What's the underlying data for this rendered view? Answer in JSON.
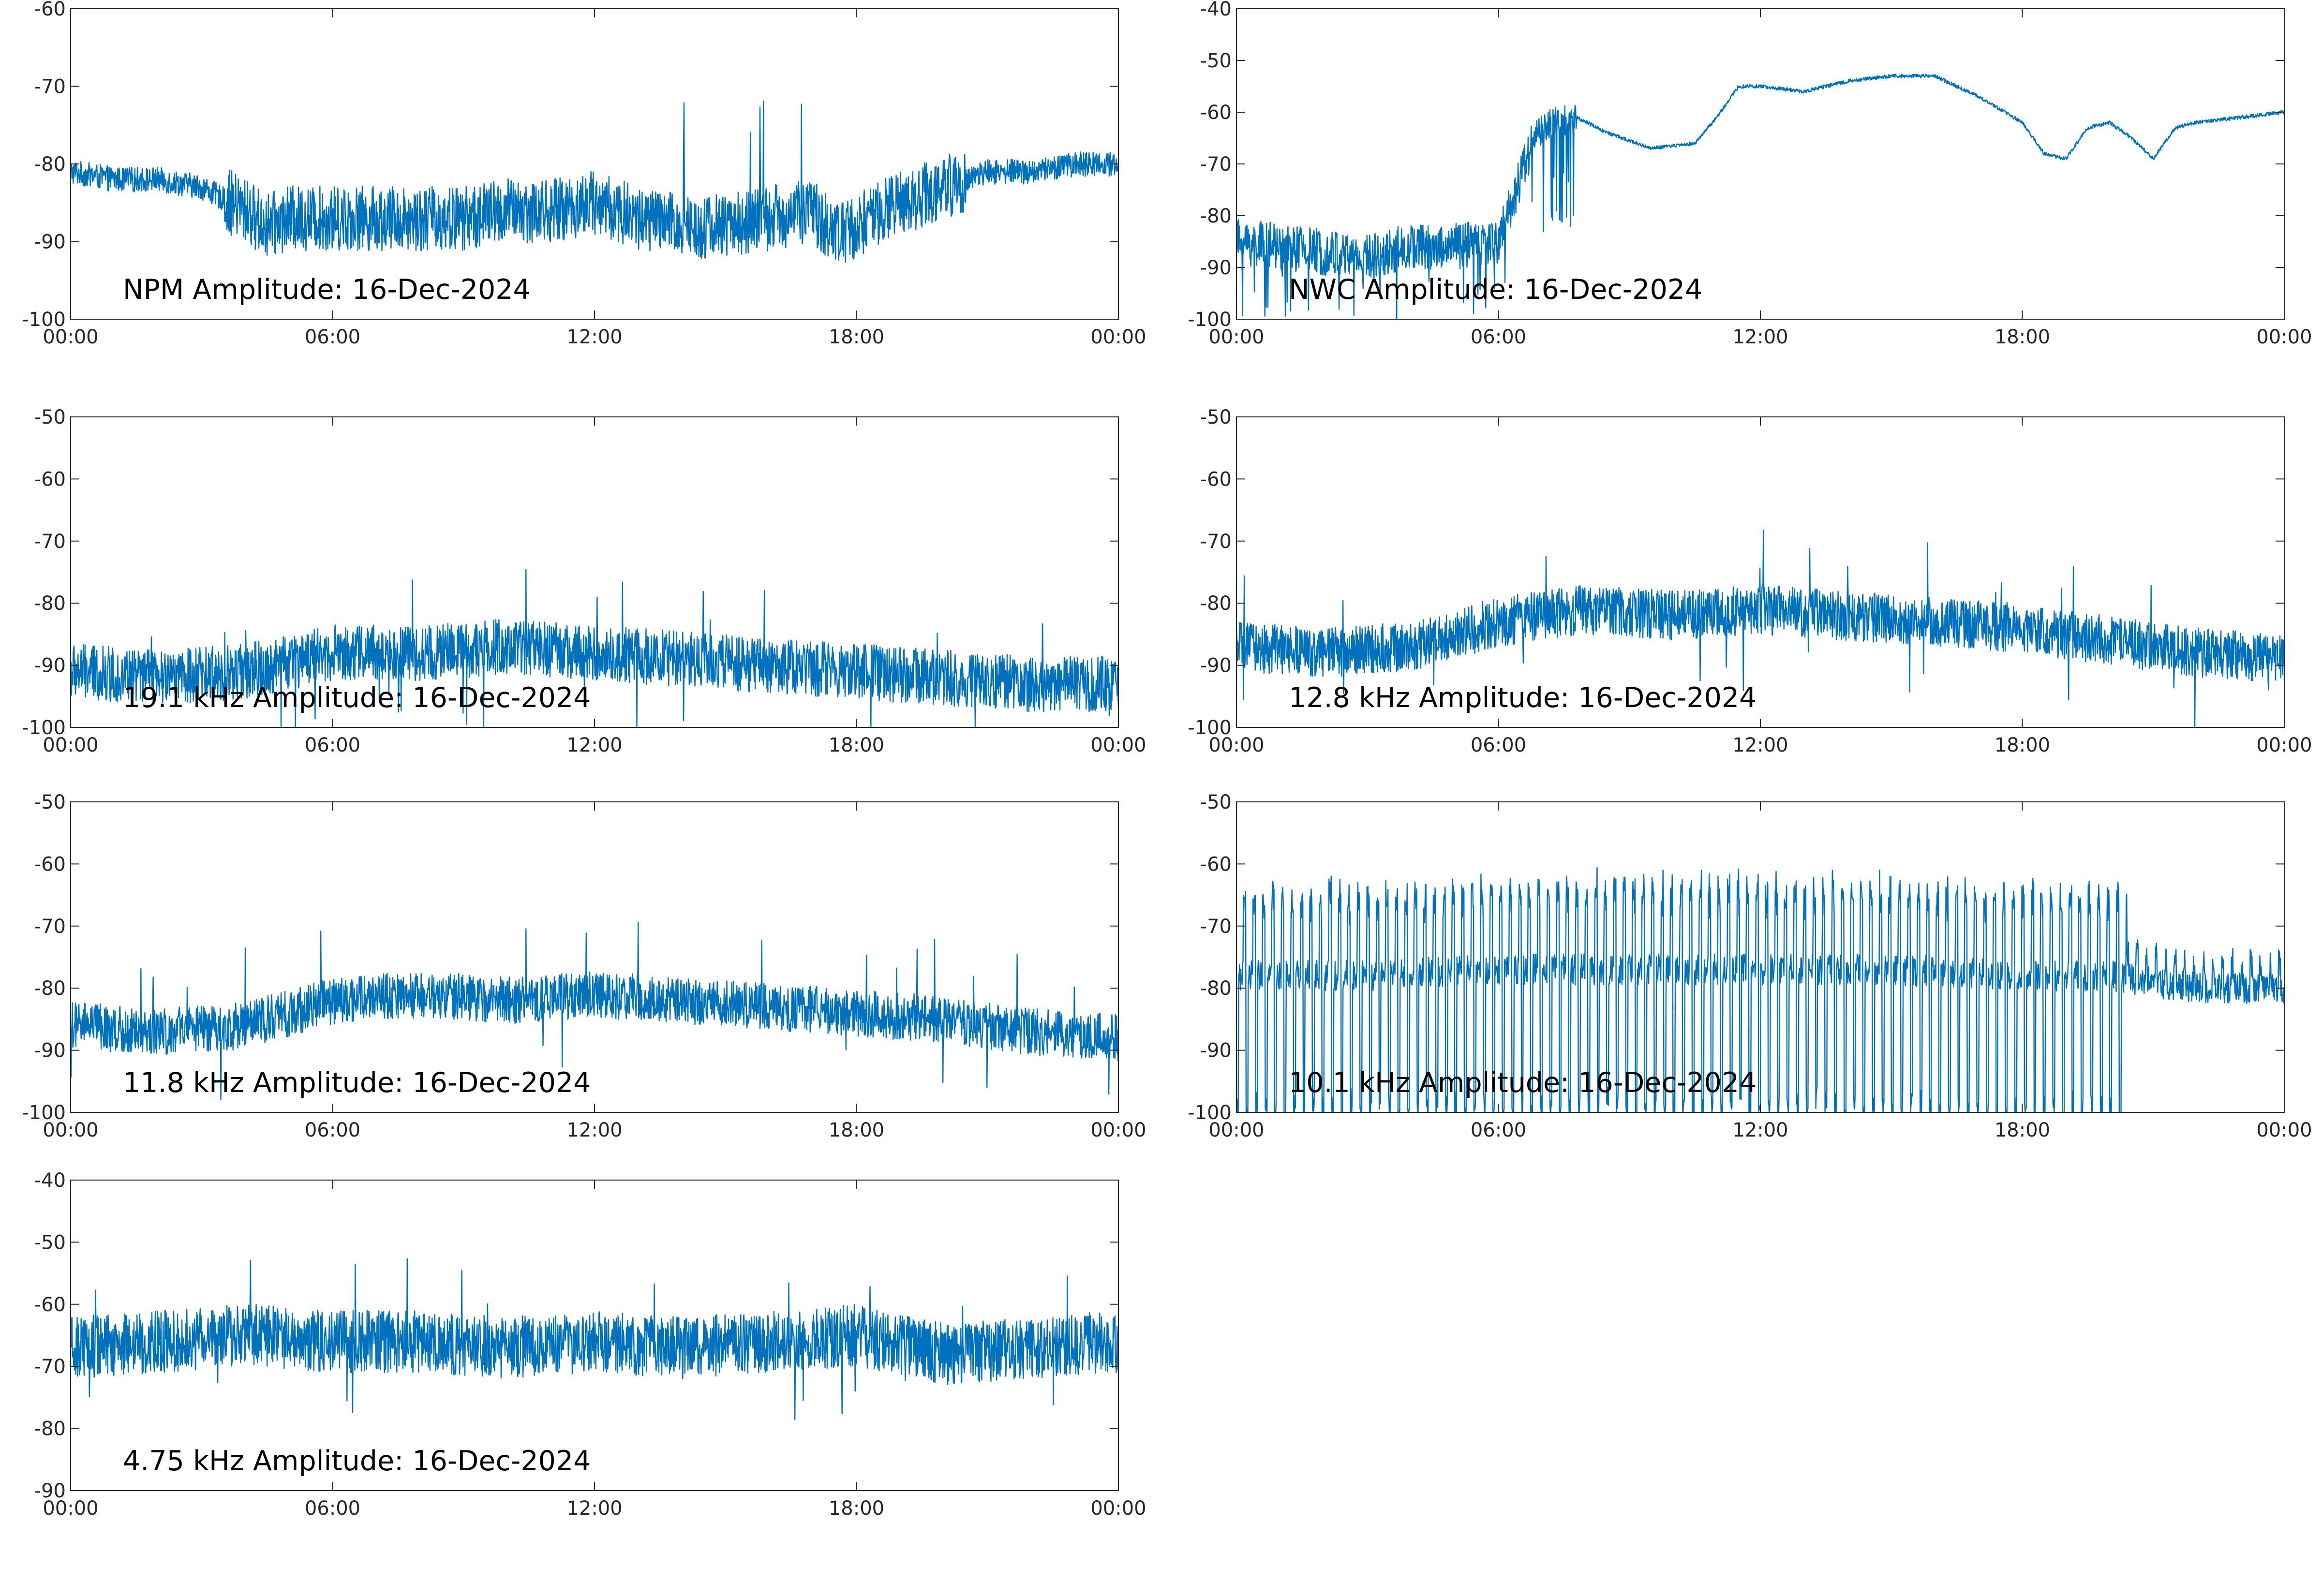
{
  "figure": {
    "background": "#ffffff",
    "line_color": "#0072bd",
    "axis_color": "#262626"
  },
  "chart_data": [
    {
      "type": "line",
      "annotation": "NPM Amplitude: 16-Dec-2024",
      "xlim": [
        "00:00",
        "24:00"
      ],
      "ylim": [
        -100,
        -60
      ],
      "xticks": [
        "00:00",
        "06:00",
        "12:00",
        "18:00",
        "00:00"
      ],
      "yticks": [
        "-60",
        "-70",
        "-80",
        "-90",
        "-100"
      ],
      "series": [
        {
          "x": [
            0,
            1,
            2,
            3,
            4,
            4.5,
            5,
            6,
            7,
            8,
            9,
            10,
            11,
            12,
            13,
            14,
            15,
            16,
            17,
            17.5,
            18,
            19,
            20,
            21,
            22,
            23,
            24
          ],
          "values": [
            -81,
            -82,
            -82,
            -83,
            -86,
            -88,
            -87,
            -87,
            -87,
            -87,
            -87,
            -86,
            -86,
            -85,
            -87,
            -88,
            -88,
            -87,
            -86,
            -89,
            -88,
            -85,
            -83,
            -81,
            -81,
            -80,
            -80
          ]
        }
      ]
    },
    {
      "type": "line",
      "annotation": "NWC Amplitude: 16-Dec-2024",
      "xlim": [
        "00:00",
        "24:00"
      ],
      "ylim": [
        -100,
        -40
      ],
      "xticks": [
        "00:00",
        "06:00",
        "12:00",
        "18:00",
        "00:00"
      ],
      "yticks": [
        "-40",
        "-50",
        "-60",
        "-70",
        "-80",
        "-90",
        "-100"
      ],
      "series": [
        {
          "x": [
            0,
            1,
            2,
            3,
            4,
            5,
            6,
            6.8,
            7.2,
            7.8,
            8.5,
            9.5,
            10.5,
            11,
            11.5,
            12,
            13,
            14,
            15,
            16,
            17,
            18,
            18.5,
            19,
            19.5,
            20,
            20.5,
            21,
            21.5,
            22,
            23,
            24
          ],
          "values": [
            -85,
            -86,
            -87,
            -88,
            -86,
            -86,
            -85,
            -65,
            -62,
            -61,
            -64,
            -67,
            -66,
            -61,
            -55,
            -55,
            -56,
            -54,
            -53,
            -53,
            -57,
            -62,
            -68,
            -69,
            -63,
            -62,
            -65,
            -69,
            -63,
            -62,
            -61,
            -60
          ]
        }
      ]
    },
    {
      "type": "line",
      "annotation": "19.1 kHz Amplitude: 16-Dec-2024",
      "xlim": [
        "00:00",
        "24:00"
      ],
      "ylim": [
        -100,
        -50
      ],
      "xticks": [
        "00:00",
        "06:00",
        "12:00",
        "18:00",
        "00:00"
      ],
      "yticks": [
        "-50",
        "-60",
        "-70",
        "-80",
        "-90",
        "-100"
      ],
      "series": [
        {
          "x": [
            0,
            2,
            4,
            6,
            8,
            10,
            12,
            14,
            16,
            18,
            20,
            22,
            24
          ],
          "values": [
            -91,
            -92,
            -91,
            -88,
            -88,
            -87,
            -88,
            -89,
            -90,
            -91,
            -92,
            -93,
            -93
          ]
        }
      ]
    },
    {
      "type": "line",
      "annotation": "12.8 kHz Amplitude: 16-Dec-2024",
      "xlim": [
        "00:00",
        "24:00"
      ],
      "ylim": [
        -100,
        -50
      ],
      "xticks": [
        "00:00",
        "06:00",
        "12:00",
        "18:00",
        "00:00"
      ],
      "yticks": [
        "-50",
        "-60",
        "-70",
        "-80",
        "-90",
        "-100"
      ],
      "series": [
        {
          "x": [
            0,
            2,
            4,
            6,
            8,
            10,
            12,
            14,
            16,
            18,
            20,
            22,
            24
          ],
          "values": [
            -87,
            -88,
            -87,
            -83,
            -81,
            -82,
            -81,
            -82,
            -83,
            -84,
            -86,
            -88,
            -89
          ]
        }
      ]
    },
    {
      "type": "line",
      "annotation": "11.8 kHz Amplitude: 16-Dec-2024",
      "xlim": [
        "00:00",
        "24:00"
      ],
      "ylim": [
        -100,
        -50
      ],
      "xticks": [
        "00:00",
        "06:00",
        "12:00",
        "18:00",
        "00:00"
      ],
      "yticks": [
        "-50",
        "-60",
        "-70",
        "-80",
        "-90",
        "-100"
      ],
      "series": [
        {
          "x": [
            0,
            2,
            4,
            6,
            8,
            10,
            12,
            14,
            16,
            18,
            20,
            22,
            24
          ],
          "values": [
            -86,
            -87,
            -86,
            -82,
            -81,
            -82,
            -81,
            -82,
            -83,
            -84,
            -85,
            -87,
            -88
          ]
        }
      ]
    },
    {
      "type": "line",
      "annotation": "10.1 kHz Amplitude: 16-Dec-2024",
      "xlim": [
        "00:00",
        "24:00"
      ],
      "ylim": [
        -100,
        -50
      ],
      "xticks": [
        "00:00",
        "06:00",
        "12:00",
        "18:00",
        "00:00"
      ],
      "yticks": [
        "-50",
        "-60",
        "-70",
        "-80",
        "-90",
        "-100"
      ],
      "series": [
        {
          "x": [
            0,
            3,
            6,
            9,
            12,
            15,
            18,
            20,
            21,
            22,
            24
          ],
          "values": [
            -78,
            -78,
            -77,
            -77,
            -77,
            -77,
            -78,
            -78,
            -79,
            -80,
            -80
          ]
        }
      ]
    },
    {
      "type": "line",
      "annotation": "4.75 kHz Amplitude: 16-Dec-2024",
      "xlim": [
        "00:00",
        "24:00"
      ],
      "ylim": [
        -90,
        -40
      ],
      "xticks": [
        "00:00",
        "06:00",
        "12:00",
        "18:00",
        "00:00"
      ],
      "yticks": [
        "-40",
        "-50",
        "-60",
        "-70",
        "-80",
        "-90"
      ],
      "series": [
        {
          "x": [
            0,
            2,
            4,
            6,
            8,
            10,
            12,
            14,
            16,
            18,
            20,
            22,
            24
          ],
          "values": [
            -67,
            -66,
            -65,
            -66,
            -66,
            -67,
            -66,
            -67,
            -66,
            -65,
            -68,
            -67,
            -66
          ]
        }
      ]
    }
  ]
}
